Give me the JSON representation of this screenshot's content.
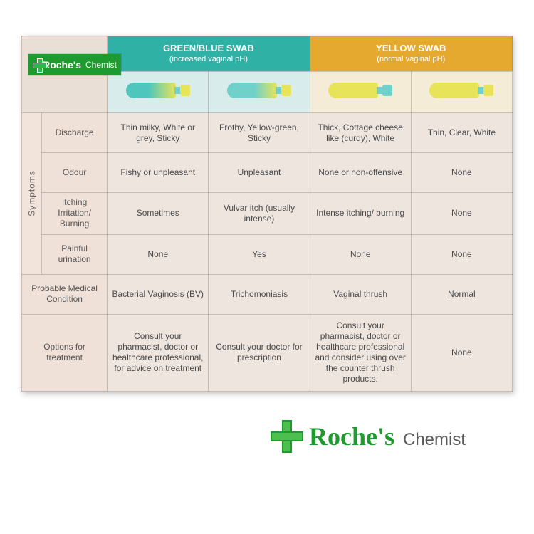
{
  "brand": {
    "name1": "Roche's",
    "name2": "Chemist"
  },
  "headers": {
    "green": {
      "title": "GREEN/BLUE SWAB",
      "sub": "(increased vaginal pH)",
      "bg": "#2fb1a6",
      "cell_bg": "#d7eceb"
    },
    "yellow": {
      "title": "YELLOW SWAB",
      "sub": "(normal vaginal pH)",
      "bg": "#e6a92f",
      "cell_bg": "#f4ecd7"
    }
  },
  "swabs": [
    {
      "body_gradient": [
        "#4fc6bd",
        "#e7e45a"
      ],
      "cap": "#e7e45a"
    },
    {
      "body_gradient": [
        "#6fd1ca",
        "#e7e45a"
      ],
      "cap": "#e7e45a"
    },
    {
      "body_solid": "#e7e45a",
      "cap": "#6fd1ca"
    },
    {
      "body_solid": "#e7e45a",
      "cap": "#e7e45a"
    }
  ],
  "sidebar_label": "Symptoms",
  "row_labels": {
    "discharge": "Discharge",
    "odour": "Odour",
    "itching": "Itching Irritation/ Burning",
    "urination": "Painful urination",
    "condition": "Probable Medical Condition",
    "treatment": "Options for treatment"
  },
  "cells": {
    "discharge": [
      "Thin milky, White or grey, Sticky",
      "Frothy, Yellow-green, Sticky",
      "Thick, Cottage cheese like (curdy), White",
      "Thin, Clear, White"
    ],
    "odour": [
      "Fishy or unpleasant",
      "Unpleasant",
      "None or non-offensive",
      "None"
    ],
    "itching": [
      "Sometimes",
      "Vulvar itch (usually intense)",
      "Intense itching/ burning",
      "None"
    ],
    "urination": [
      "None",
      "Yes",
      "None",
      "None"
    ],
    "condition": [
      "Bacterial Vaginosis (BV)",
      "Trichomoniasis",
      "Vaginal thrush",
      "Normal"
    ],
    "treatment": [
      "Consult your pharmacist, doctor or healthcare professional, for advice on treatment",
      "Consult your doctor for prescription",
      "Consult your pharmacist, doctor or healthcare professional and consider using over the counter thrush products.",
      "None"
    ]
  },
  "style": {
    "card_bg": "#efe5df",
    "border_color": "rgba(120,110,100,0.35)",
    "text_color": "#4a4a4a",
    "font_size_cell": 12,
    "font_size_header": 13
  }
}
